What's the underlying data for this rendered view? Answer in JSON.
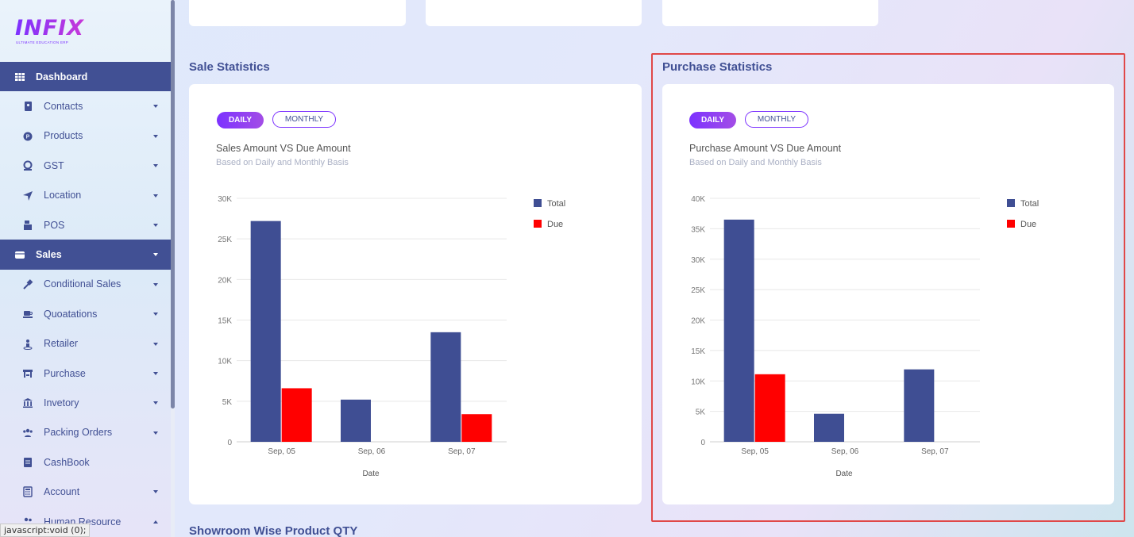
{
  "brand": {
    "logo": "INFIX",
    "tagline": "ULTIMATE EDUCATION ERP"
  },
  "sidebar": {
    "items": [
      {
        "label": "Dashboard",
        "icon": "grid-icon",
        "active": true,
        "chevron": "none"
      },
      {
        "label": "Contacts",
        "icon": "contact-book-icon",
        "active": false,
        "chevron": "down"
      },
      {
        "label": "Products",
        "icon": "product-circle-icon",
        "active": false,
        "chevron": "down"
      },
      {
        "label": "GST",
        "icon": "tax-icon",
        "active": false,
        "chevron": "down"
      },
      {
        "label": "Location",
        "icon": "location-arrow-icon",
        "active": false,
        "chevron": "down"
      },
      {
        "label": "POS",
        "icon": "cash-register-icon",
        "active": false,
        "chevron": "down"
      },
      {
        "label": "Sales",
        "icon": "store-icon",
        "active": true,
        "chevron": "down"
      },
      {
        "label": "Conditional Sales",
        "icon": "gavel-icon",
        "active": false,
        "chevron": "down"
      },
      {
        "label": "Quoatations",
        "icon": "cup-icon",
        "active": false,
        "chevron": "down"
      },
      {
        "label": "Retailer",
        "icon": "person-pin-icon",
        "active": false,
        "chevron": "down"
      },
      {
        "label": "Purchase",
        "icon": "shop-icon",
        "active": false,
        "chevron": "down"
      },
      {
        "label": "Invetory",
        "icon": "bank-icon",
        "active": false,
        "chevron": "down"
      },
      {
        "label": "Packing Orders",
        "icon": "users-icon",
        "active": false,
        "chevron": "down"
      },
      {
        "label": "CashBook",
        "icon": "book-icon",
        "active": false,
        "chevron": "none"
      },
      {
        "label": "Account",
        "icon": "calculator-icon",
        "active": false,
        "chevron": "down"
      },
      {
        "label": "Human Resource",
        "icon": "people-icon",
        "active": false,
        "chevron": "up"
      }
    ]
  },
  "status_bar": {
    "text": "javascript:void (0);"
  },
  "sale_stats": {
    "section_title": "Sale Statistics",
    "daily_label": "DAILY",
    "monthly_label": "MONTHLY",
    "title": "Sales Amount VS Due Amount",
    "subtitle": "Based on Daily and Monthly Basis"
  },
  "purchase_stats": {
    "section_title": "Purchase Statistics",
    "daily_label": "DAILY",
    "monthly_label": "MONTHLY",
    "title": "Purchase Amount VS Due Amount",
    "subtitle": "Based on Daily and Monthly Basis"
  },
  "bottom_section": {
    "title": "Showroom Wise Product QTY"
  },
  "colors": {
    "total": "#3f4e93",
    "due": "#ff0000",
    "accent": "#7c32ff",
    "primary": "#415094"
  },
  "chart_data": [
    {
      "type": "bar",
      "title": "Sales Amount VS Due Amount",
      "subtitle": "Based on Daily and Monthly Basis",
      "xlabel": "Date",
      "ylabel": "",
      "categories": [
        "Sep, 05",
        "Sep, 06",
        "Sep, 07"
      ],
      "yticks": [
        "0",
        "5K",
        "10K",
        "15K",
        "20K",
        "25K",
        "30K"
      ],
      "ylim": [
        0,
        30000
      ],
      "series": [
        {
          "name": "Total",
          "values": [
            27200,
            5200,
            13500
          ]
        },
        {
          "name": "Due",
          "values": [
            6600,
            0,
            3400
          ]
        }
      ],
      "legend": "right",
      "grid": true
    },
    {
      "type": "bar",
      "title": "Purchase Amount VS Due Amount",
      "subtitle": "Based on Daily and Monthly Basis",
      "xlabel": "Date",
      "ylabel": "",
      "categories": [
        "Sep, 05",
        "Sep, 06",
        "Sep, 07"
      ],
      "yticks": [
        "0",
        "5K",
        "10K",
        "15K",
        "20K",
        "25K",
        "30K",
        "35K",
        "40K"
      ],
      "ylim": [
        0,
        40000
      ],
      "series": [
        {
          "name": "Total",
          "values": [
            36500,
            4600,
            11900
          ]
        },
        {
          "name": "Due",
          "values": [
            11100,
            0,
            0
          ]
        }
      ],
      "legend": "right",
      "grid": true
    }
  ]
}
